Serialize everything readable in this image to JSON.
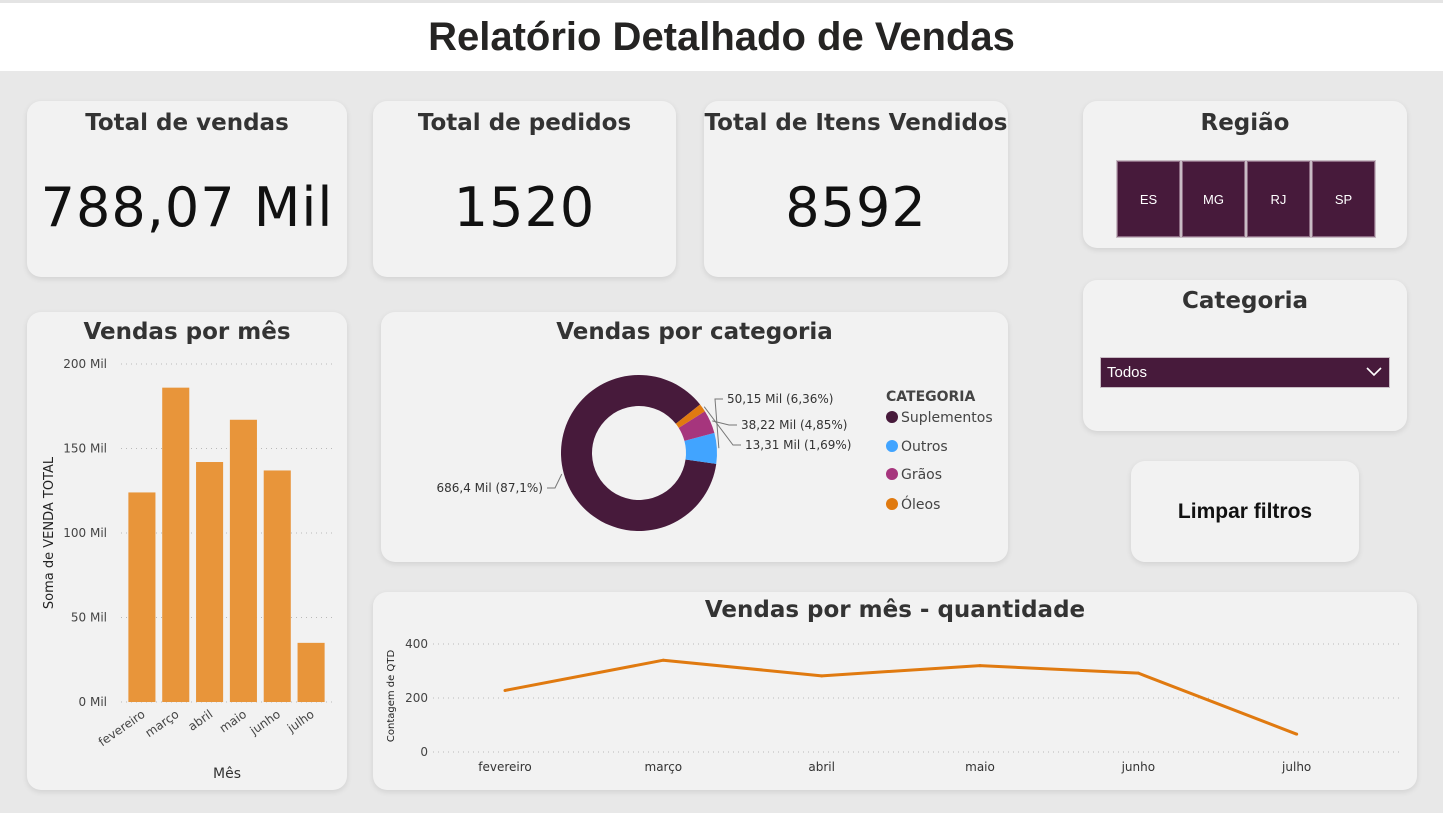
{
  "header": {
    "title": "Relatório Detalhado de Vendas"
  },
  "kpis": {
    "total_vendas": {
      "label": "Total de vendas",
      "value": "788,07 Mil"
    },
    "total_pedidos": {
      "label": "Total de pedidos",
      "value": "1520"
    },
    "total_itens": {
      "label": "Total de Itens Vendidos",
      "value": "8592"
    }
  },
  "regiao": {
    "title": "Região",
    "options": [
      "ES",
      "MG",
      "RJ",
      "SP"
    ]
  },
  "categoria_filter": {
    "title": "Categoria",
    "selected": "Todos"
  },
  "clear_button": {
    "label": "Limpar filtros"
  },
  "colors": {
    "bar": "#e8953a",
    "line": "#e07a10",
    "slicer": "#471a3b",
    "suplementos": "#471a3b",
    "outros": "#41a4ff",
    "graos": "#a6357d",
    "oleos": "#e07a10"
  },
  "chart_data": [
    {
      "id": "vendas_por_mes",
      "type": "bar",
      "title": "Vendas por mês",
      "xlabel": "Mês",
      "ylabel": "Soma de VENDA TOTAL",
      "categories": [
        "fevereiro",
        "março",
        "abril",
        "maio",
        "junho",
        "julho"
      ],
      "values": [
        124000,
        186000,
        142000,
        167000,
        137000,
        35000
      ],
      "ylim": [
        0,
        200000
      ],
      "yticks": [
        "0 Mil",
        "50 Mil",
        "100 Mil",
        "150 Mil",
        "200 Mil"
      ],
      "grid": true
    },
    {
      "id": "vendas_por_categoria",
      "type": "pie",
      "title": "Vendas por categoria",
      "legend_title": "CATEGORIA",
      "legend_position": "right",
      "slices": [
        {
          "name": "Suplementos",
          "value": 686.4,
          "label": "686,4 Mil (87,1%)"
        },
        {
          "name": "Outros",
          "value": 50.15,
          "label": "50,15 Mil (6,36%)"
        },
        {
          "name": "Grãos",
          "value": 38.22,
          "label": "38,22 Mil (4,85%)"
        },
        {
          "name": "Óleos",
          "value": 13.31,
          "label": "13,31 Mil (1,69%)"
        }
      ]
    },
    {
      "id": "vendas_por_mes_quantidade",
      "type": "line",
      "title": "Vendas por mês - quantidade",
      "xlabel": "",
      "ylabel": "Contagem de QTD",
      "categories": [
        "fevereiro",
        "março",
        "abril",
        "maio",
        "junho",
        "julho"
      ],
      "values": [
        228,
        340,
        282,
        320,
        292,
        66
      ],
      "ylim": [
        0,
        400
      ],
      "yticks": [
        "0",
        "200",
        "400"
      ],
      "grid": true
    }
  ]
}
